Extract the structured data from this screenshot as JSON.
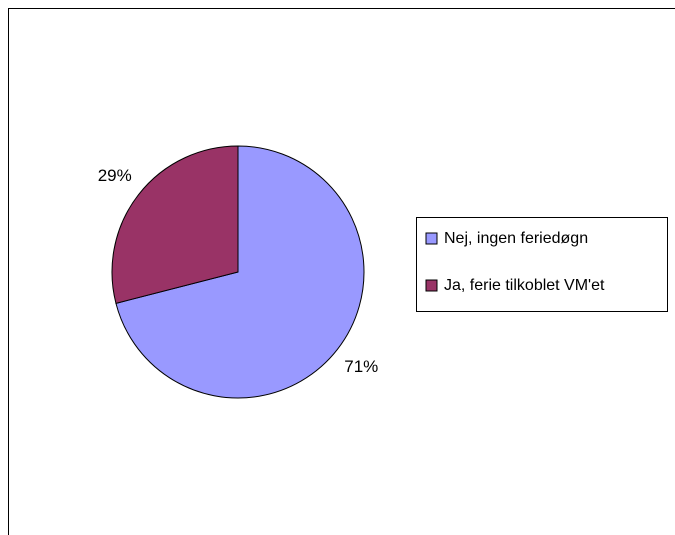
{
  "chart_data": {
    "type": "pie",
    "title": "",
    "legend_position": "right",
    "slices": [
      {
        "label": "Nej, ingen feriedøgn",
        "value": 71,
        "display": "71%",
        "color": "#9999FF"
      },
      {
        "label": "Ja, ferie tilkoblet VM'et",
        "value": 29,
        "display": "29%",
        "color": "#993366"
      }
    ]
  }
}
